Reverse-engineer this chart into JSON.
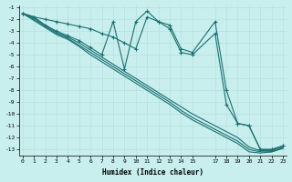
{
  "xlabel": "Humidex (Indice chaleur)",
  "background_color": "#c8eeee",
  "grid_color": "#b8e0e0",
  "line_color": "#1a7070",
  "xlim": [
    -0.3,
    23.3
  ],
  "ylim": [
    -13.5,
    -0.8
  ],
  "xticks": [
    0,
    1,
    2,
    3,
    4,
    5,
    6,
    7,
    8,
    9,
    10,
    11,
    12,
    13,
    14,
    15,
    17,
    18,
    19,
    20,
    21,
    22,
    23
  ],
  "yticks": [
    -1,
    -2,
    -3,
    -4,
    -5,
    -6,
    -7,
    -8,
    -9,
    -10,
    -11,
    -12,
    -13
  ],
  "lines": [
    {
      "x": [
        0,
        1,
        2,
        3,
        4,
        5,
        6,
        7,
        8,
        9,
        10,
        11,
        12,
        13,
        14,
        15,
        17,
        18,
        19,
        20,
        21,
        22,
        23
      ],
      "y": [
        -1.5,
        -1.8,
        -2.0,
        -2.2,
        -2.4,
        -2.6,
        -2.8,
        -3.2,
        -3.5,
        -4.0,
        -4.5,
        -1.8,
        -2.2,
        -2.5,
        -4.5,
        -4.8,
        -2.2,
        -8.0,
        -10.8,
        -11.0,
        -13.0,
        -13.0,
        -12.7
      ],
      "marker": true
    },
    {
      "x": [
        0,
        1,
        2,
        3,
        4,
        5,
        6,
        7,
        8,
        9,
        10,
        11,
        12,
        13,
        14,
        15,
        17,
        18,
        19,
        20,
        21,
        22,
        23
      ],
      "y": [
        -1.5,
        -1.8,
        -2.5,
        -3.0,
        -3.4,
        -3.8,
        -4.4,
        -5.0,
        -2.2,
        -6.2,
        -2.2,
        -1.3,
        -2.2,
        -2.8,
        -4.8,
        -5.0,
        -3.2,
        -9.2,
        -10.8,
        -11.0,
        -13.0,
        -13.0,
        -12.7
      ],
      "marker": true
    },
    {
      "x": [
        0,
        1,
        2,
        3,
        4,
        5,
        6,
        7,
        8,
        9,
        10,
        11,
        12,
        13,
        14,
        15,
        17,
        18,
        19,
        20,
        21,
        22,
        23
      ],
      "y": [
        -1.5,
        -1.9,
        -2.5,
        -3.1,
        -3.5,
        -4.0,
        -4.6,
        -5.2,
        -5.8,
        -6.4,
        -7.0,
        -7.6,
        -8.2,
        -8.8,
        -9.4,
        -10.0,
        -11.0,
        -11.5,
        -12.0,
        -12.8,
        -13.1,
        -13.1,
        -12.8
      ],
      "marker": false
    },
    {
      "x": [
        0,
        1,
        2,
        3,
        4,
        5,
        6,
        7,
        8,
        9,
        10,
        11,
        12,
        13,
        14,
        15,
        17,
        18,
        19,
        20,
        21,
        22,
        23
      ],
      "y": [
        -1.5,
        -2.0,
        -2.6,
        -3.2,
        -3.6,
        -4.2,
        -4.8,
        -5.4,
        -6.0,
        -6.6,
        -7.2,
        -7.8,
        -8.4,
        -9.0,
        -9.7,
        -10.3,
        -11.3,
        -11.8,
        -12.3,
        -13.0,
        -13.2,
        -13.2,
        -12.9
      ],
      "marker": false
    },
    {
      "x": [
        0,
        1,
        2,
        3,
        4,
        5,
        6,
        7,
        8,
        9,
        10,
        11,
        12,
        13,
        14,
        15,
        17,
        18,
        19,
        20,
        21,
        22,
        23
      ],
      "y": [
        -1.5,
        -2.1,
        -2.7,
        -3.3,
        -3.7,
        -4.3,
        -5.0,
        -5.6,
        -6.2,
        -6.8,
        -7.4,
        -8.0,
        -8.6,
        -9.2,
        -9.9,
        -10.5,
        -11.5,
        -12.0,
        -12.5,
        -13.2,
        -13.3,
        -13.2,
        -12.9
      ],
      "marker": false
    }
  ]
}
